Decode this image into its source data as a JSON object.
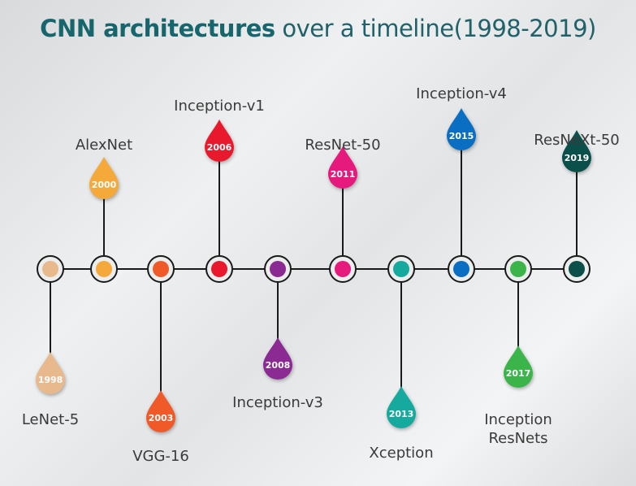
{
  "title": {
    "bold": "CNN architectures",
    "rest": " over a timeline(1998-2019)"
  },
  "colors": {
    "title": "#17666e",
    "line": "#1a1a1a",
    "year_text": "#ffffff"
  },
  "milestones": [
    {
      "name": "LeNet-5",
      "year": "1998",
      "color": "#e8b98c",
      "side": "below"
    },
    {
      "name": "AlexNet",
      "year": "2000",
      "color": "#f4a93a",
      "side": "above"
    },
    {
      "name": "VGG-16",
      "year": "2003",
      "color": "#f05a28",
      "side": "below"
    },
    {
      "name": "Inception-v1",
      "year": "2006",
      "color": "#e8192c",
      "side": "above"
    },
    {
      "name": "Inception-v3",
      "year": "2008",
      "color": "#8b2a93",
      "side": "below"
    },
    {
      "name": "ResNet-50",
      "year": "2011",
      "color": "#e6197c",
      "side": "above"
    },
    {
      "name": "Xception",
      "year": "2013",
      "color": "#16aa9e",
      "side": "below"
    },
    {
      "name": "Inception-v4",
      "year": "2015",
      "color": "#0a6fc2",
      "side": "above"
    },
    {
      "name": "Inception\nResNets",
      "year": "2017",
      "color": "#3bb54a",
      "side": "below"
    },
    {
      "name": "ResNeXt-50",
      "year": "2019",
      "color": "#0b4f4a",
      "side": "above"
    }
  ]
}
